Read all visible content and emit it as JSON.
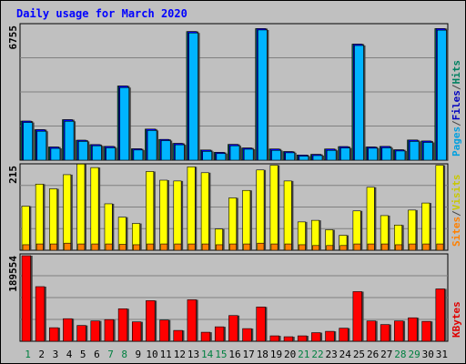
{
  "chart_data": [
    {
      "type": "bar",
      "title": "Daily usage for March 2020",
      "categories": [
        "1",
        "2",
        "3",
        "4",
        "5",
        "6",
        "7",
        "8",
        "9",
        "10",
        "11",
        "12",
        "13",
        "14",
        "15",
        "16",
        "17",
        "18",
        "19",
        "20",
        "21",
        "22",
        "23",
        "24",
        "25",
        "26",
        "27",
        "28",
        "29",
        "30",
        "31"
      ],
      "weekend_categories": [
        "1",
        "7",
        "8",
        "14",
        "15",
        "21",
        "22",
        "28",
        "29"
      ],
      "y_axis_max_label": "6755",
      "ylim": [
        0,
        6755
      ],
      "right_labels": [
        {
          "text": "Pages",
          "color": "#00a0e0"
        },
        {
          "text": "/",
          "color": "#444444"
        },
        {
          "text": "Files",
          "color": "#0000c0"
        },
        {
          "text": "/",
          "color": "#444444"
        },
        {
          "text": "Hits",
          "color": "#008060"
        }
      ],
      "series": [
        {
          "name": "Hits",
          "color": "#00805a",
          "values": [
            1960,
            1530,
            660,
            2030,
            1000,
            780,
            690,
            3720,
            570,
            1560,
            1040,
            840,
            6450,
            510,
            390,
            790,
            610,
            6600,
            560,
            430,
            260,
            290,
            560,
            680,
            5820,
            660,
            690,
            520,
            1010,
            960,
            6600
          ]
        },
        {
          "name": "Files",
          "color": "#0000ff",
          "values": [
            1960,
            1530,
            660,
            2030,
            1000,
            780,
            690,
            3720,
            570,
            1560,
            1040,
            840,
            6450,
            510,
            390,
            790,
            610,
            6600,
            560,
            430,
            260,
            290,
            560,
            680,
            5820,
            660,
            690,
            520,
            1010,
            960,
            6600
          ]
        },
        {
          "name": "Pages",
          "color": "#00b4ff",
          "values": [
            1890,
            1450,
            590,
            1950,
            940,
            720,
            620,
            3640,
            510,
            1490,
            980,
            770,
            6380,
            440,
            330,
            720,
            550,
            6530,
            490,
            370,
            200,
            230,
            490,
            610,
            5750,
            600,
            620,
            460,
            940,
            890,
            6520
          ]
        }
      ]
    },
    {
      "type": "bar",
      "categories": [
        "1",
        "2",
        "3",
        "4",
        "5",
        "6",
        "7",
        "8",
        "9",
        "10",
        "11",
        "12",
        "13",
        "14",
        "15",
        "16",
        "17",
        "18",
        "19",
        "20",
        "21",
        "22",
        "23",
        "24",
        "25",
        "26",
        "27",
        "28",
        "29",
        "30",
        "31"
      ],
      "y_axis_max_label": "215",
      "ylim": [
        0,
        215
      ],
      "right_labels": [
        {
          "text": "Sites",
          "color": "#ff8000"
        },
        {
          "text": "/",
          "color": "#444444"
        },
        {
          "text": "Visits",
          "color": "#c8c800"
        }
      ],
      "series": [
        {
          "name": "Visits",
          "color": "#ffff00",
          "values": [
            112,
            168,
            156,
            192,
            219,
            210,
            118,
            84,
            68,
            200,
            178,
            176,
            212,
            197,
            54,
            133,
            152,
            204,
            216,
            176,
            72,
            76,
            52,
            38,
            100,
            160,
            88,
            64,
            102,
            120,
            216
          ]
        },
        {
          "name": "Sites",
          "color": "#ff8000",
          "values": [
            14,
            16,
            16,
            18,
            16,
            16,
            16,
            15,
            14,
            16,
            16,
            16,
            16,
            16,
            14,
            16,
            16,
            18,
            16,
            16,
            14,
            12,
            12,
            12,
            16,
            16,
            16,
            14,
            16,
            16,
            16
          ]
        }
      ]
    },
    {
      "type": "bar",
      "categories": [
        "1",
        "2",
        "3",
        "4",
        "5",
        "6",
        "7",
        "8",
        "9",
        "10",
        "11",
        "12",
        "13",
        "14",
        "15",
        "16",
        "17",
        "18",
        "19",
        "20",
        "21",
        "22",
        "23",
        "24",
        "25",
        "26",
        "27",
        "28",
        "29",
        "30",
        "31"
      ],
      "y_axis_max_label": "189554",
      "ylim": [
        0,
        189554
      ],
      "right_labels": [
        {
          "text": "KBytes",
          "color": "#e00000"
        }
      ],
      "series": [
        {
          "name": "KBytes",
          "color": "#ff0000",
          "values": [
            189554,
            121000,
            30000,
            50000,
            35000,
            45000,
            48000,
            72000,
            43000,
            90000,
            47000,
            24000,
            92000,
            20000,
            32000,
            57000,
            28000,
            76000,
            12000,
            10000,
            12000,
            19000,
            22000,
            29000,
            110000,
            45000,
            37000,
            45000,
            52000,
            44000,
            116000
          ]
        }
      ]
    }
  ]
}
